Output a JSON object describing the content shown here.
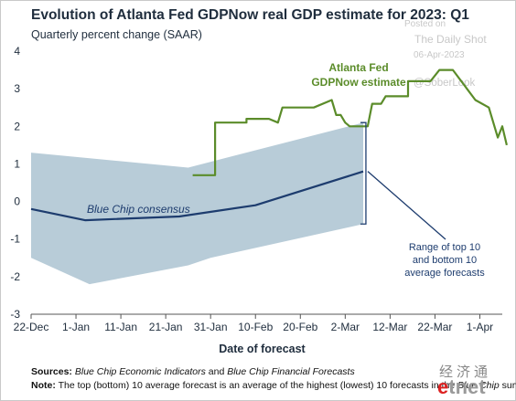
{
  "header": {
    "title": "Evolution of Atlanta Fed GDPNow real GDP estimate for 2023: Q1",
    "subtitle": "Quarterly percent change (SAAR)"
  },
  "watermark": {
    "line1": "Posted on",
    "line2": "The Daily Shot",
    "line3": "06-Apr-2023",
    "line4": "@SoberLook"
  },
  "footer": {
    "source_label": "Sources:",
    "source_text_1": "Blue Chip Economic Indicators",
    "source_text_2": " and ",
    "source_text_3": "Blue Chip Financial Forecasts",
    "note_label": "Note:",
    "note_text_1": " The top (bottom) 10 average forecast is an average of the highest (lowest) 10 forecasts in the ",
    "note_text_2": "Blue Chip",
    "note_text_3": " survey."
  },
  "logo": {
    "chinese": "经济通",
    "latin_e": "e",
    "latin_rest": "tnet"
  },
  "chart_data": {
    "type": "line",
    "xlabel": "Date of forecast",
    "ylabel": "",
    "ylim": [
      -3,
      4
    ],
    "yticks": [
      -3,
      -2,
      -1,
      0,
      1,
      2,
      3,
      4
    ],
    "xlim": [
      "2022-12-22",
      "2023-04-06"
    ],
    "xticks": [
      {
        "date": "2022-12-22",
        "label": "22-Dec"
      },
      {
        "date": "2023-01-01",
        "label": "1-Jan"
      },
      {
        "date": "2023-01-11",
        "label": "11-Jan"
      },
      {
        "date": "2023-01-21",
        "label": "21-Jan"
      },
      {
        "date": "2023-01-31",
        "label": "31-Jan"
      },
      {
        "date": "2023-02-10",
        "label": "10-Feb"
      },
      {
        "date": "2023-02-20",
        "label": "20-Feb"
      },
      {
        "date": "2023-03-02",
        "label": "2-Mar"
      },
      {
        "date": "2023-03-12",
        "label": "12-Mar"
      },
      {
        "date": "2023-03-22",
        "label": "22-Mar"
      },
      {
        "date": "2023-04-01",
        "label": "1-Apr"
      }
    ],
    "grid": false,
    "colors": {
      "gdpnow": "#5b8c2a",
      "blue_chip": "#1d3c6e",
      "band": "#b8ccd8",
      "annotation": "#1d3c6e"
    },
    "series": [
      {
        "name": "Atlanta Fed GDPNow estimate",
        "color": "#5b8c2a",
        "points": [
          [
            "2023-01-27",
            0.7
          ],
          [
            "2023-02-01",
            0.7
          ],
          [
            "2023-02-01",
            2.1
          ],
          [
            "2023-02-08",
            2.1
          ],
          [
            "2023-02-08",
            2.2
          ],
          [
            "2023-02-13",
            2.2
          ],
          [
            "2023-02-15",
            2.1
          ],
          [
            "2023-02-16",
            2.5
          ],
          [
            "2023-02-23",
            2.5
          ],
          [
            "2023-02-27",
            2.7
          ],
          [
            "2023-02-28",
            2.3
          ],
          [
            "2023-03-01",
            2.3
          ],
          [
            "2023-03-02",
            2.1
          ],
          [
            "2023-03-03",
            2.0
          ],
          [
            "2023-03-07",
            2.0
          ],
          [
            "2023-03-08",
            2.6
          ],
          [
            "2023-03-10",
            2.6
          ],
          [
            "2023-03-11",
            2.8
          ],
          [
            "2023-03-16",
            2.8
          ],
          [
            "2023-03-16",
            3.2
          ],
          [
            "2023-03-21",
            3.2
          ],
          [
            "2023-03-23",
            3.5
          ],
          [
            "2023-03-26",
            3.5
          ],
          [
            "2023-03-31",
            2.7
          ],
          [
            "2023-04-03",
            2.5
          ],
          [
            "2023-04-05",
            1.7
          ],
          [
            "2023-04-06",
            2.0
          ],
          [
            "2023-04-07",
            1.5
          ]
        ]
      },
      {
        "name": "Blue Chip consensus",
        "color": "#1d3c6e",
        "points": [
          [
            "2022-12-22",
            -0.2
          ],
          [
            "2023-01-03",
            -0.5
          ],
          [
            "2023-01-24",
            -0.4
          ],
          [
            "2023-02-10",
            -0.1
          ],
          [
            "2023-03-06",
            0.8
          ]
        ]
      }
    ],
    "band": {
      "name": "Range of top 10 and bottom 10 average forecasts",
      "top": [
        [
          "2022-12-22",
          1.3
        ],
        [
          "2023-01-26",
          0.9
        ],
        [
          "2023-03-06",
          2.1
        ]
      ],
      "bottom": [
        [
          "2023-03-06",
          -0.6
        ],
        [
          "2023-01-31",
          -1.5
        ],
        [
          "2023-01-26",
          -1.7
        ],
        [
          "2023-01-04",
          -2.2
        ],
        [
          "2022-12-22",
          -1.5
        ]
      ]
    },
    "annotations": [
      {
        "id": "gdpnow_label_1",
        "text": "Atlanta Fed"
      },
      {
        "id": "gdpnow_label_2",
        "text": "GDPNow estimate"
      },
      {
        "id": "bluechip_label",
        "text": "Blue Chip consensus"
      },
      {
        "id": "range_label_1",
        "text": "Range of top 10"
      },
      {
        "id": "range_label_2",
        "text": "and bottom 10"
      },
      {
        "id": "range_label_3",
        "text": "average forecasts"
      }
    ]
  }
}
